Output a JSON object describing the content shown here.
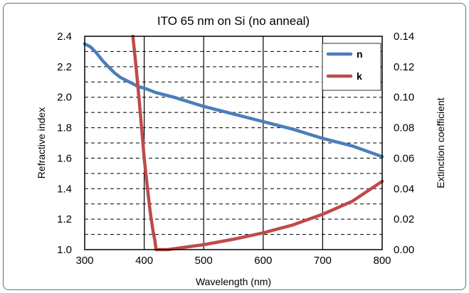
{
  "chart_data": {
    "type": "line",
    "title": "ITO 65 nm on Si (no anneal)",
    "xlabel": "Wavelength (nm)",
    "ylabel": "Refractive index",
    "y2label": "Extinction coefficient",
    "xlim": [
      300,
      800
    ],
    "ylim": [
      1.0,
      2.4
    ],
    "y2lim": [
      0.0,
      0.14
    ],
    "xticks": [
      300,
      400,
      500,
      600,
      700,
      800
    ],
    "xtick_labels": [
      "300",
      "400",
      "500",
      "600",
      "700",
      "800"
    ],
    "yticks": [
      1.0,
      1.2,
      1.4,
      1.6,
      1.8,
      2.0,
      2.2,
      2.4
    ],
    "ytick_labels": [
      "1.0",
      "1.2",
      "1.4",
      "1.6",
      "1.8",
      "2.0",
      "2.2",
      "2.4"
    ],
    "y2ticks": [
      0.0,
      0.02,
      0.04,
      0.06,
      0.08,
      0.1,
      0.12,
      0.14
    ],
    "y2tick_labels": [
      "0.00",
      "0.02",
      "0.04",
      "0.06",
      "0.08",
      "0.10",
      "0.12",
      "0.14"
    ],
    "grid": true,
    "legend_position": "top-right",
    "series": [
      {
        "name": "n",
        "axis": "left",
        "color": "#4a7ebb",
        "x": [
          300,
          310,
          320,
          330,
          340,
          350,
          360,
          370,
          380,
          390,
          400,
          420,
          450,
          500,
          550,
          600,
          650,
          700,
          750,
          800
        ],
        "y": [
          2.35,
          2.33,
          2.29,
          2.24,
          2.2,
          2.16,
          2.13,
          2.11,
          2.09,
          2.07,
          2.06,
          2.03,
          2.0,
          1.94,
          1.89,
          1.84,
          1.79,
          1.73,
          1.68,
          1.61
        ]
      },
      {
        "name": "k",
        "axis": "right",
        "color": "#be4b48",
        "x": [
          381,
          385,
          390,
          395,
          400,
          405,
          410,
          415,
          418,
          420,
          440,
          450,
          500,
          550,
          600,
          650,
          700,
          750,
          800
        ],
        "y": [
          0.14,
          0.125,
          0.105,
          0.083,
          0.06,
          0.042,
          0.025,
          0.012,
          0.006,
          0.0,
          0.0,
          0.0006,
          0.0032,
          0.0068,
          0.011,
          0.0162,
          0.0232,
          0.0318,
          0.0448
        ]
      }
    ]
  }
}
